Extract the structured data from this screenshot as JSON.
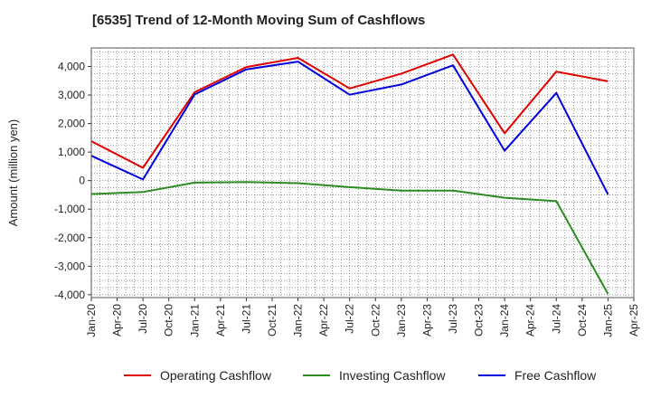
{
  "chart_data": {
    "type": "line",
    "title": "[6535]  Trend of 12-Month Moving Sum of Cashflows",
    "ylabel": "Amount (million yen)",
    "xlabel": "",
    "ylim": [
      -4100,
      4650
    ],
    "yticks": [
      -4000,
      -3000,
      -2000,
      -1000,
      0,
      1000,
      2000,
      3000,
      4000
    ],
    "ytick_labels": [
      "-4,000",
      "-3,000",
      "-2,000",
      "-1,000",
      "0",
      "1,000",
      "2,000",
      "3,000",
      "4,000"
    ],
    "x_tick_labels": [
      "Jan-20",
      "Apr-20",
      "Jul-20",
      "Oct-20",
      "Jan-21",
      "Apr-21",
      "Jul-21",
      "Oct-21",
      "Jan-22",
      "Apr-22",
      "Jul-22",
      "Oct-22",
      "Jan-23",
      "Apr-23",
      "Jul-23",
      "Oct-23",
      "Jan-24",
      "Apr-24",
      "Jul-24",
      "Oct-24",
      "Jan-25",
      "Apr-25"
    ],
    "grid": true,
    "legend_position": "bottom",
    "x": [
      "Jan-20",
      "Jul-20",
      "Jan-21",
      "Jul-21",
      "Jan-22",
      "Jul-22",
      "Jan-23",
      "Jul-23",
      "Jan-24",
      "Jul-24",
      "Jan-25"
    ],
    "series": [
      {
        "name": "Operating Cashflow",
        "color": "#e00000",
        "values": [
          1380,
          450,
          3100,
          3980,
          4300,
          3230,
          3750,
          4420,
          1660,
          3820,
          3480
        ]
      },
      {
        "name": "Investing Cashflow",
        "color": "#2e8b22",
        "values": [
          -470,
          -400,
          -70,
          -50,
          -90,
          -230,
          -350,
          -350,
          -600,
          -720,
          -3970
        ]
      },
      {
        "name": "Free Cashflow",
        "color": "#0000dd",
        "values": [
          870,
          40,
          3020,
          3900,
          4170,
          3010,
          3370,
          4040,
          1050,
          3070,
          -480
        ]
      }
    ]
  }
}
